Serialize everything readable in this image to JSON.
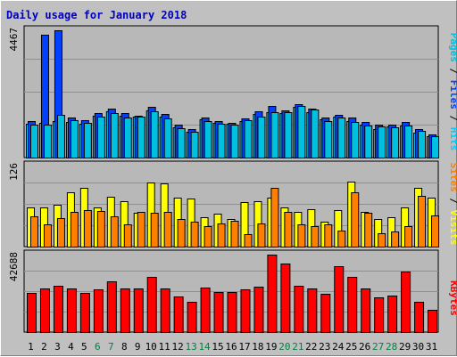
{
  "title": "Daily usage for January 2018",
  "colors": {
    "background": "#c0c0c0",
    "plot_bg": "#b8b8b8",
    "title_text": "#0000c0",
    "hits": "#00ccff",
    "files": "#0040ff",
    "pages": "#00c0e0",
    "visits": "#ffff00",
    "sites": "#ff8000",
    "kbytes": "#ff0000",
    "weekend_label": "#008040"
  },
  "chart_data": [
    {
      "type": "bar",
      "title": "Daily usage for January 2018",
      "categories": [
        "1",
        "2",
        "3",
        "4",
        "5",
        "6",
        "7",
        "8",
        "9",
        "10",
        "11",
        "12",
        "13",
        "14",
        "15",
        "16",
        "17",
        "18",
        "19",
        "20",
        "21",
        "22",
        "23",
        "24",
        "25",
        "26",
        "27",
        "28",
        "29",
        "30",
        "31"
      ],
      "weekend_categories": [
        "6",
        "7",
        "13",
        "14",
        "20",
        "21",
        "27",
        "28"
      ],
      "ylabel": "Pages / Files / Hits",
      "y_max_label": "4467",
      "ylim": [
        0,
        4467
      ],
      "grid": true,
      "series": [
        {
          "name": "Hits",
          "values": [
            1200,
            1230,
            1300,
            1250,
            1190,
            1480,
            1630,
            1470,
            1440,
            1680,
            1440,
            1060,
            900,
            1340,
            1220,
            1180,
            1300,
            1540,
            1620,
            1580,
            1790,
            1600,
            1340,
            1440,
            1300,
            1160,
            1020,
            1100,
            1140,
            890,
            760
          ]
        },
        {
          "name": "Files",
          "values": [
            1280,
            4330,
            4500,
            1400,
            1320,
            1560,
            1720,
            1580,
            1480,
            1780,
            1550,
            1150,
            1000,
            1420,
            1300,
            1240,
            1380,
            1640,
            1840,
            1680,
            1900,
            1730,
            1430,
            1520,
            1400,
            1250,
            1160,
            1170,
            1250,
            1000,
            810
          ]
        },
        {
          "name": "Pages",
          "values": [
            1150,
            1170,
            1500,
            1320,
            1230,
            1440,
            1570,
            1420,
            1450,
            1630,
            1380,
            1040,
            920,
            1300,
            1190,
            1160,
            1320,
            1450,
            1620,
            1620,
            1820,
            1700,
            1290,
            1410,
            1270,
            1130,
            1090,
            1060,
            1130,
            950,
            760
          ]
        }
      ]
    },
    {
      "type": "bar",
      "ylabel": "Sites / Visits",
      "y_max_label": "126",
      "ylim": [
        0,
        126
      ],
      "grid": true,
      "series": [
        {
          "name": "Visits",
          "values": [
            60,
            60,
            65,
            83,
            90,
            60,
            77,
            70,
            52,
            98,
            97,
            76,
            74,
            45,
            50,
            42,
            69,
            70,
            76,
            60,
            53,
            58,
            38,
            56,
            100,
            53,
            42,
            45,
            60,
            90,
            75
          ]
        },
        {
          "name": "Sites",
          "values": [
            47,
            34,
            44,
            53,
            56,
            55,
            47,
            34,
            53,
            52,
            53,
            43,
            38,
            31,
            36,
            40,
            19,
            35,
            91,
            53,
            34,
            32,
            34,
            24,
            84,
            52,
            20,
            23,
            32,
            78,
            48
          ]
        }
      ]
    },
    {
      "type": "bar",
      "ylabel": "KBytes",
      "y_max_label": "42688",
      "ylim": [
        0,
        42688
      ],
      "grid": true,
      "series": [
        {
          "name": "KBytes",
          "values": [
            21500,
            24000,
            25200,
            23800,
            21500,
            23400,
            27600,
            23800,
            23700,
            30200,
            23700,
            19400,
            16700,
            24400,
            21800,
            22000,
            23400,
            24600,
            42300,
            37400,
            25200,
            24000,
            20900,
            36000,
            30000,
            24000,
            18800,
            20000,
            33000,
            16500,
            12200
          ]
        }
      ]
    }
  ]
}
